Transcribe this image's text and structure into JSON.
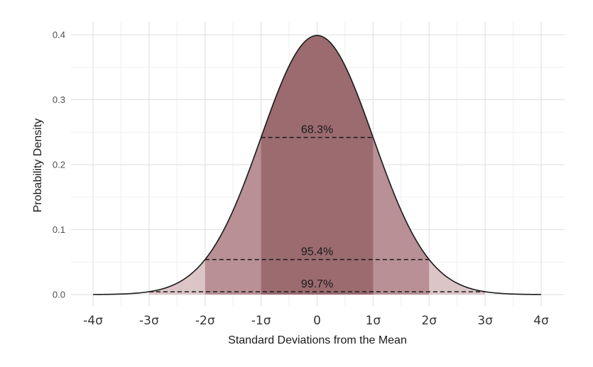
{
  "chart_data": {
    "type": "area",
    "title": "",
    "xlabel": "Standard Deviations from the Mean",
    "ylabel": "Probability Density",
    "xlim": [
      -4,
      4
    ],
    "ylim": [
      0,
      0.4
    ],
    "grid": true,
    "x_ticks": [
      -4,
      -3,
      -2,
      -1,
      0,
      1,
      2,
      3,
      4
    ],
    "x_tick_labels": [
      "-4σ",
      "-3σ",
      "-2σ",
      "-1σ",
      "0",
      "1σ",
      "2σ",
      "3σ",
      "4σ"
    ],
    "y_ticks": [
      0,
      0.1,
      0.2,
      0.3,
      0.4
    ],
    "y_tick_labels": [
      "0.0",
      "0.1",
      "0.2",
      "0.3",
      "0.4"
    ],
    "curve": "standard normal density",
    "bands": [
      {
        "range": [
          -1,
          1
        ],
        "label": "68.3%",
        "color": "#9b6b70"
      },
      {
        "range": [
          -2,
          2
        ],
        "label": "95.4%",
        "color": "#b89095"
      },
      {
        "range": [
          -3,
          3
        ],
        "label": "99.7%",
        "color": "#dcc5c7"
      }
    ],
    "band_line_heights": [
      0.242,
      0.054,
      0.0044
    ],
    "colors": {
      "curve": "#1a1a1a",
      "grid_major": "#e3e3e3",
      "grid_minor": "#efefef"
    }
  }
}
